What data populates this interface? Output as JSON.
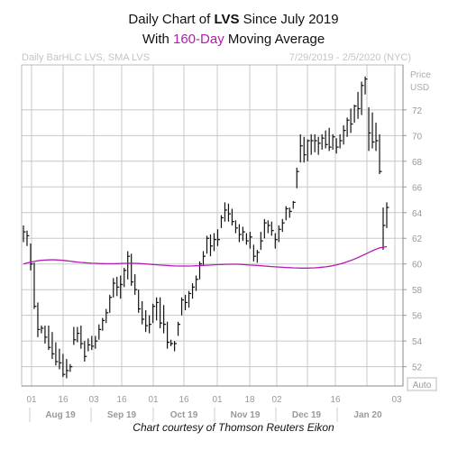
{
  "header": {
    "title_prefix": "Daily Chart of ",
    "title_ticker": "LVS",
    "title_suffix": " Since July 2019",
    "subtitle_prefix": "With ",
    "subtitle_highlight": "160-Day",
    "subtitle_suffix": " Moving Average",
    "left_label": "Daily BarHLC LVS, SMA LVS",
    "right_label": "7/29/2019 - 2/5/2020 (NYC)"
  },
  "credit": "Chart courtesy of Thomson Reuters Eikon",
  "colors": {
    "bars": "#111111",
    "sma": "#b31bb3",
    "grid": "#c8c8c8",
    "axis_text": "#999999"
  },
  "chart_data": {
    "type": "ohlc",
    "ylabel": [
      "Price",
      "USD"
    ],
    "ylim": [
      50.5,
      75.5
    ],
    "yticks": [
      52,
      54,
      56,
      58,
      60,
      62,
      64,
      66,
      68,
      70,
      72
    ],
    "grid": true,
    "x_tick_labels": [
      "01",
      "16",
      "03",
      "16",
      "01",
      "16",
      "01",
      "18",
      "02",
      "16",
      "03"
    ],
    "month_labels": [
      "Aug 19",
      "Sep 19",
      "Oct 19",
      "Nov 19",
      "Dec 19",
      "Jan 20"
    ],
    "scale_label": "Auto",
    "series": [
      {
        "name": "LVS",
        "kind": "bar_hlc",
        "high": [
          63.0,
          62.6,
          61.6,
          60.1,
          57.0,
          55.2,
          55.2,
          55.2,
          54.7,
          53.9,
          53.4,
          53.0,
          52.6,
          52.2,
          55.1,
          55.1,
          55.2,
          54.0,
          54.2,
          54.4,
          54.4,
          55.3,
          55.8,
          56.5,
          57.6,
          58.9,
          59.0,
          59.1,
          59.7,
          61.0,
          60.8,
          59.2,
          58.0,
          57.1,
          56.4,
          56.0,
          56.9,
          57.4,
          57.4,
          56.8,
          55.5,
          54.1,
          54.0,
          55.5,
          57.4,
          57.6,
          57.9,
          58.5,
          59.1,
          60.2,
          61.0,
          62.2,
          62.3,
          62.4,
          62.7,
          63.8,
          64.8,
          64.7,
          64.3,
          63.4,
          63.1,
          62.9,
          62.4,
          62.5,
          61.5,
          61.1,
          62.5,
          63.5,
          63.4,
          63.3,
          62.4,
          63.0,
          63.5,
          64.5,
          64.4,
          64.9,
          67.5,
          70.1,
          69.9,
          69.7,
          70.1,
          70.1,
          69.9,
          70.1,
          70.4,
          70.6,
          70.1,
          69.8,
          70.1,
          70.8,
          71.4,
          72.1,
          72.4,
          73.4,
          74.2,
          74.6,
          72.2,
          71.8,
          71.0,
          70.1,
          64.4,
          64.8
        ],
        "low": [
          61.7,
          61.4,
          59.5,
          56.5,
          54.3,
          54.6,
          53.8,
          53.3,
          52.6,
          52.1,
          51.8,
          51.2,
          51.1,
          51.6,
          53.7,
          53.9,
          53.4,
          52.4,
          53.2,
          53.3,
          53.4,
          54.1,
          54.8,
          55.4,
          56.2,
          57.4,
          57.5,
          57.3,
          58.2,
          58.8,
          58.3,
          57.6,
          56.2,
          55.3,
          54.7,
          54.6,
          55.4,
          55.6,
          55.0,
          54.6,
          53.4,
          53.6,
          53.2,
          54.4,
          56.0,
          56.4,
          56.6,
          57.3,
          57.9,
          58.8,
          59.9,
          60.8,
          60.6,
          61.0,
          61.4,
          62.8,
          63.3,
          63.3,
          63.0,
          62.4,
          61.7,
          61.8,
          61.5,
          61.2,
          60.2,
          60.1,
          61.1,
          62.0,
          62.4,
          62.2,
          61.2,
          61.7,
          62.5,
          63.4,
          63.6,
          64.3,
          65.9,
          67.9,
          67.9,
          68.0,
          68.5,
          68.7,
          68.5,
          68.9,
          69.0,
          68.8,
          68.9,
          68.6,
          69.0,
          69.3,
          69.9,
          70.2,
          71.0,
          71.3,
          71.6,
          73.2,
          68.8,
          69.0,
          68.8,
          67.0,
          61.1,
          62.8
        ],
        "close": [
          62.5,
          62.2,
          60.0,
          56.7,
          54.9,
          55.0,
          54.3,
          53.5,
          53.0,
          52.4,
          52.3,
          51.4,
          51.7,
          52.0,
          54.1,
          54.6,
          53.8,
          52.8,
          53.7,
          53.6,
          54.0,
          54.9,
          55.6,
          56.2,
          57.4,
          58.5,
          58.2,
          58.4,
          59.5,
          60.6,
          58.6,
          58.0,
          56.5,
          55.7,
          55.2,
          55.3,
          56.7,
          57.0,
          55.4,
          55.3,
          53.9,
          53.8,
          53.8,
          55.3,
          57.2,
          57.0,
          57.7,
          58.2,
          58.8,
          60.0,
          60.6,
          62.0,
          61.4,
          61.9,
          61.9,
          63.6,
          64.2,
          63.9,
          63.3,
          62.8,
          62.3,
          62.5,
          61.8,
          62.1,
          60.6,
          60.9,
          61.8,
          63.2,
          63.0,
          62.6,
          61.9,
          62.7,
          63.2,
          64.3,
          64.1,
          64.8,
          67.2,
          69.2,
          68.5,
          69.6,
          69.6,
          69.6,
          69.4,
          69.8,
          69.3,
          69.1,
          69.9,
          69.1,
          69.6,
          70.4,
          71.2,
          70.9,
          72.3,
          72.1,
          73.9,
          74.4,
          70.2,
          69.5,
          69.6,
          67.2,
          63.0,
          64.4
        ]
      },
      {
        "name": "SMA LVS",
        "kind": "sma_160",
        "values": [
          60.0,
          60.08,
          60.15,
          60.2,
          60.25,
          60.28,
          60.3,
          60.32,
          60.33,
          60.32,
          60.3,
          60.28,
          60.25,
          60.22,
          60.18,
          60.15,
          60.12,
          60.1,
          60.08,
          60.06,
          60.05,
          60.04,
          60.03,
          60.02,
          60.02,
          60.02,
          60.03,
          60.04,
          60.05,
          60.06,
          60.06,
          60.05,
          60.04,
          60.02,
          60.0,
          59.98,
          59.96,
          59.94,
          59.92,
          59.9,
          59.88,
          59.86,
          59.85,
          59.84,
          59.84,
          59.84,
          59.84,
          59.85,
          59.86,
          59.87,
          59.88,
          59.9,
          59.92,
          59.94,
          59.95,
          59.96,
          59.97,
          59.98,
          59.98,
          59.98,
          59.97,
          59.96,
          59.94,
          59.92,
          59.9,
          59.88,
          59.86,
          59.84,
          59.82,
          59.8,
          59.78,
          59.76,
          59.74,
          59.72,
          59.71,
          59.7,
          59.69,
          59.68,
          59.68,
          59.68,
          59.69,
          59.7,
          59.72,
          59.75,
          59.78,
          59.82,
          59.87,
          59.93,
          60.0,
          60.08,
          60.17,
          60.27,
          60.38,
          60.5,
          60.63,
          60.76,
          60.9,
          61.03,
          61.15,
          61.25,
          61.3,
          61.35
        ]
      }
    ]
  }
}
